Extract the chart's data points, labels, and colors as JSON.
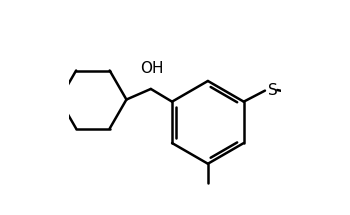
{
  "background_color": "#ffffff",
  "line_color": "#000000",
  "line_width": 1.8,
  "dbo": 0.018,
  "figsize": [
    3.5,
    2.15
  ],
  "dpi": 100,
  "xlim": [
    0.0,
    1.0
  ],
  "ylim": [
    0.0,
    1.0
  ],
  "oh_label": "OH",
  "s_label": "S"
}
